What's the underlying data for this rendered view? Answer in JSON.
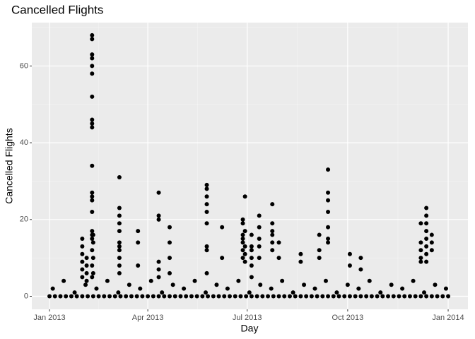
{
  "chart_data": {
    "type": "scatter",
    "title": "Cancelled Flights",
    "x_label": "Day",
    "y_label": "Cancelled Flights",
    "color": "#000000",
    "grid": true,
    "xlim": [
      -16.2,
      383.1
    ],
    "ylim": [
      -3.4,
      71.3
    ],
    "xticks": [
      {
        "value": 0,
        "label": "Jan 2013"
      },
      {
        "value": 90,
        "label": "Apr 2013"
      },
      {
        "value": 181,
        "label": "Jul 2013"
      },
      {
        "value": 273,
        "label": "Oct 2013"
      },
      {
        "value": 365,
        "label": "Jan 2014"
      }
    ],
    "x_minor_ticks": [
      45,
      135.5,
      227,
      319
    ],
    "yticks": [
      0,
      20,
      40,
      60
    ],
    "y_minor_ticks": [
      10,
      30,
      50,
      70
    ],
    "x": [
      0,
      5,
      10,
      15,
      20,
      25,
      30,
      35,
      40,
      45,
      50,
      55,
      60,
      65,
      70,
      75,
      80,
      85,
      90,
      95,
      100,
      105,
      110,
      115,
      120,
      125,
      130,
      135,
      140,
      145,
      150,
      155,
      160,
      165,
      170,
      175,
      180,
      185,
      190,
      195,
      200,
      205,
      210,
      215,
      220,
      225,
      230,
      235,
      240,
      245,
      250,
      255,
      260,
      265,
      270,
      275,
      280,
      285,
      290,
      295,
      300,
      305,
      310,
      315,
      320,
      325,
      330,
      335,
      340,
      345,
      350,
      355,
      360,
      365,
      3,
      13,
      23,
      33,
      43,
      53,
      63,
      73,
      83,
      93,
      103,
      113,
      123,
      133,
      143,
      153,
      163,
      173,
      183,
      193,
      203,
      213,
      223,
      233,
      243,
      253,
      263,
      273,
      283,
      293,
      303,
      313,
      323,
      333,
      343,
      353,
      363,
      39,
      39,
      39,
      39,
      39,
      39,
      39,
      39,
      39,
      39,
      39,
      39,
      39,
      39,
      39,
      39,
      39,
      39,
      39,
      39,
      39,
      40,
      40,
      40,
      40,
      30,
      30,
      30,
      30,
      30,
      30,
      34,
      34,
      34,
      34,
      64,
      64,
      64,
      64,
      64,
      64,
      64,
      64,
      64,
      64,
      64,
      81,
      81,
      81,
      100,
      100,
      100,
      100,
      100,
      100,
      110,
      110,
      110,
      110,
      144,
      144,
      144,
      144,
      144,
      144,
      144,
      144,
      144,
      158,
      158,
      177,
      177,
      177,
      177,
      177,
      177,
      177,
      179,
      179,
      179,
      179,
      179,
      185,
      185,
      185,
      185,
      185,
      185,
      192,
      192,
      192,
      192,
      192,
      204,
      204,
      204,
      204,
      204,
      204,
      210,
      210,
      230,
      230,
      247,
      247,
      247,
      255,
      255,
      255,
      255,
      255,
      255,
      255,
      275,
      275,
      285,
      285,
      340,
      340,
      340,
      340,
      340,
      345,
      345,
      345,
      345,
      345,
      345,
      345,
      345,
      350,
      350,
      350
    ],
    "values": [
      0,
      0,
      0,
      0,
      0,
      0,
      0,
      0,
      0,
      0,
      0,
      0,
      0,
      0,
      0,
      0,
      0,
      0,
      0,
      0,
      0,
      0,
      0,
      0,
      0,
      0,
      0,
      0,
      0,
      0,
      0,
      0,
      0,
      0,
      0,
      0,
      0,
      0,
      0,
      0,
      0,
      0,
      0,
      0,
      0,
      0,
      0,
      0,
      0,
      0,
      0,
      0,
      0,
      0,
      0,
      0,
      0,
      0,
      0,
      0,
      0,
      0,
      0,
      0,
      0,
      0,
      0,
      0,
      0,
      0,
      0,
      0,
      0,
      0,
      2,
      4,
      1,
      3,
      2,
      4,
      1,
      3,
      2,
      4,
      1,
      3,
      2,
      4,
      1,
      3,
      2,
      4,
      1,
      3,
      2,
      4,
      1,
      3,
      2,
      4,
      1,
      3,
      2,
      4,
      1,
      3,
      2,
      4,
      1,
      3,
      2,
      68,
      67,
      63,
      62,
      60,
      58,
      52,
      46,
      45,
      44,
      34,
      27,
      26,
      25,
      22,
      17,
      16,
      15,
      12,
      8,
      5,
      16,
      14,
      10,
      6,
      15,
      13,
      11,
      9,
      7,
      5,
      10,
      8,
      6,
      4,
      31,
      23,
      21,
      19,
      17,
      14,
      13,
      12,
      10,
      8,
      6,
      17,
      14,
      8,
      27,
      21,
      20,
      9,
      7,
      5,
      18,
      14,
      10,
      6,
      29,
      28,
      26,
      24,
      22,
      19,
      13,
      12,
      6,
      18,
      10,
      20,
      19,
      16,
      15,
      14,
      12,
      10,
      26,
      17,
      13,
      11,
      9,
      16,
      13,
      12,
      10,
      8,
      5,
      21,
      18,
      15,
      13,
      10,
      24,
      19,
      17,
      16,
      14,
      12,
      14,
      10,
      11,
      9,
      16,
      12,
      10,
      33,
      27,
      25,
      22,
      18,
      15,
      14,
      11,
      8,
      10,
      7,
      19,
      14,
      12,
      10,
      9,
      23,
      21,
      19,
      17,
      15,
      13,
      11,
      9,
      16,
      14,
      12
    ]
  }
}
